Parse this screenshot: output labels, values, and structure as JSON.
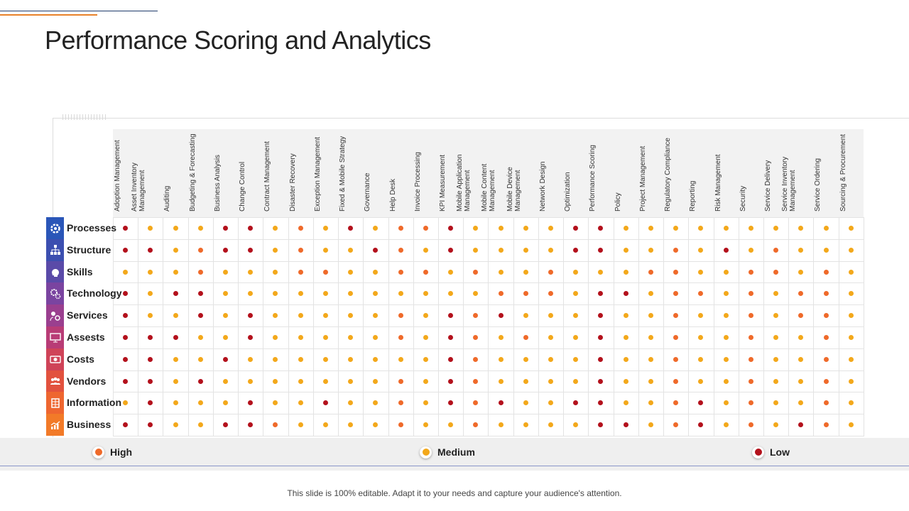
{
  "title": "Performance Scoring and Analytics",
  "footer": "This slide is 100% editable. Adapt it to your needs and capture your audience's attention.",
  "colors": {
    "high": "#ef6a2a",
    "medium": "#f3a81b",
    "low": "#b3111c"
  },
  "legend": [
    {
      "key": "H",
      "label": "High"
    },
    {
      "key": "M",
      "label": "Medium"
    },
    {
      "key": "L",
      "label": "Low"
    }
  ],
  "chart_data": {
    "type": "table",
    "title": "Performance Scoring and Analytics",
    "columns": [
      "Adoption Management",
      "Asset Inventory Management",
      "Auditing",
      "Budgeting & Forecasting",
      "Business Analysis",
      "Change Control",
      "Contract Management",
      "Disaster Recovery",
      "Exception Management",
      "Fixed & Mobile Strategy",
      "Governance",
      "Help Desk",
      "Invoice Processing",
      "KPI Measurement",
      "Mobile Application Management",
      "Mobile Content Management",
      "Mobile Device Management",
      "Network Design",
      "Optimization",
      "Performance Scoring",
      "Policy",
      "Project Management",
      "Regulatory Compliance",
      "Reporting",
      "Risk Management",
      "Security",
      "Service Delivery",
      "Service Inventory Management",
      "Service Ordering",
      "Sourcing & Procurement"
    ],
    "rows": [
      {
        "label": "Processes",
        "icon": "gear-icon",
        "values": [
          "L",
          "M",
          "M",
          "M",
          "L",
          "L",
          "M",
          "H",
          "M",
          "L",
          "M",
          "H",
          "H",
          "L",
          "M",
          "M",
          "M",
          "M",
          "L",
          "L",
          "M",
          "M",
          "M",
          "M",
          "M",
          "M",
          "M",
          "M",
          "M",
          "M"
        ]
      },
      {
        "label": "Structure",
        "icon": "org-chart-icon",
        "values": [
          "L",
          "L",
          "M",
          "H",
          "L",
          "L",
          "M",
          "H",
          "M",
          "M",
          "L",
          "H",
          "M",
          "L",
          "M",
          "M",
          "M",
          "M",
          "L",
          "L",
          "M",
          "M",
          "H",
          "M",
          "L",
          "M",
          "H",
          "M",
          "M",
          "M"
        ]
      },
      {
        "label": "Skills",
        "icon": "head-icon",
        "values": [
          "M",
          "M",
          "M",
          "H",
          "M",
          "M",
          "M",
          "H",
          "H",
          "M",
          "M",
          "H",
          "H",
          "M",
          "H",
          "M",
          "M",
          "H",
          "M",
          "M",
          "M",
          "H",
          "H",
          "M",
          "M",
          "H",
          "H",
          "M",
          "H",
          "M"
        ]
      },
      {
        "label": "Technology",
        "icon": "gears-icon",
        "values": [
          "L",
          "M",
          "L",
          "L",
          "M",
          "M",
          "M",
          "M",
          "M",
          "M",
          "M",
          "M",
          "M",
          "M",
          "M",
          "H",
          "H",
          "H",
          "M",
          "L",
          "L",
          "M",
          "H",
          "H",
          "M",
          "H",
          "M",
          "H",
          "H",
          "M"
        ]
      },
      {
        "label": "Services",
        "icon": "service-icon",
        "values": [
          "L",
          "M",
          "M",
          "L",
          "M",
          "L",
          "M",
          "M",
          "M",
          "M",
          "M",
          "H",
          "M",
          "L",
          "H",
          "L",
          "M",
          "M",
          "M",
          "L",
          "M",
          "M",
          "H",
          "M",
          "M",
          "H",
          "M",
          "H",
          "H",
          "M"
        ]
      },
      {
        "label": "Assests",
        "icon": "monitor-icon",
        "values": [
          "L",
          "L",
          "L",
          "M",
          "M",
          "L",
          "M",
          "M",
          "M",
          "M",
          "M",
          "H",
          "M",
          "L",
          "H",
          "M",
          "H",
          "M",
          "M",
          "L",
          "M",
          "M",
          "H",
          "M",
          "M",
          "H",
          "M",
          "M",
          "H",
          "M"
        ]
      },
      {
        "label": "Costs",
        "icon": "money-icon",
        "values": [
          "L",
          "L",
          "M",
          "M",
          "L",
          "M",
          "M",
          "M",
          "M",
          "M",
          "M",
          "M",
          "M",
          "L",
          "H",
          "M",
          "M",
          "M",
          "M",
          "L",
          "M",
          "M",
          "H",
          "M",
          "M",
          "H",
          "M",
          "M",
          "H",
          "M"
        ]
      },
      {
        "label": "Vendors",
        "icon": "people-icon",
        "values": [
          "L",
          "L",
          "M",
          "L",
          "M",
          "M",
          "M",
          "M",
          "M",
          "M",
          "M",
          "H",
          "M",
          "L",
          "H",
          "M",
          "M",
          "M",
          "M",
          "L",
          "M",
          "M",
          "H",
          "M",
          "M",
          "H",
          "M",
          "M",
          "H",
          "M"
        ]
      },
      {
        "label": "Information",
        "icon": "database-icon",
        "values": [
          "M",
          "L",
          "M",
          "M",
          "M",
          "L",
          "M",
          "M",
          "L",
          "M",
          "M",
          "H",
          "M",
          "L",
          "H",
          "L",
          "M",
          "M",
          "L",
          "L",
          "M",
          "M",
          "H",
          "L",
          "M",
          "H",
          "M",
          "M",
          "H",
          "M"
        ]
      },
      {
        "label": "Business",
        "icon": "growth-chart-icon",
        "values": [
          "L",
          "L",
          "M",
          "M",
          "L",
          "L",
          "H",
          "M",
          "M",
          "M",
          "M",
          "H",
          "M",
          "M",
          "H",
          "M",
          "M",
          "M",
          "M",
          "L",
          "L",
          "M",
          "H",
          "L",
          "M",
          "H",
          "M",
          "L",
          "H",
          "M"
        ]
      }
    ]
  }
}
